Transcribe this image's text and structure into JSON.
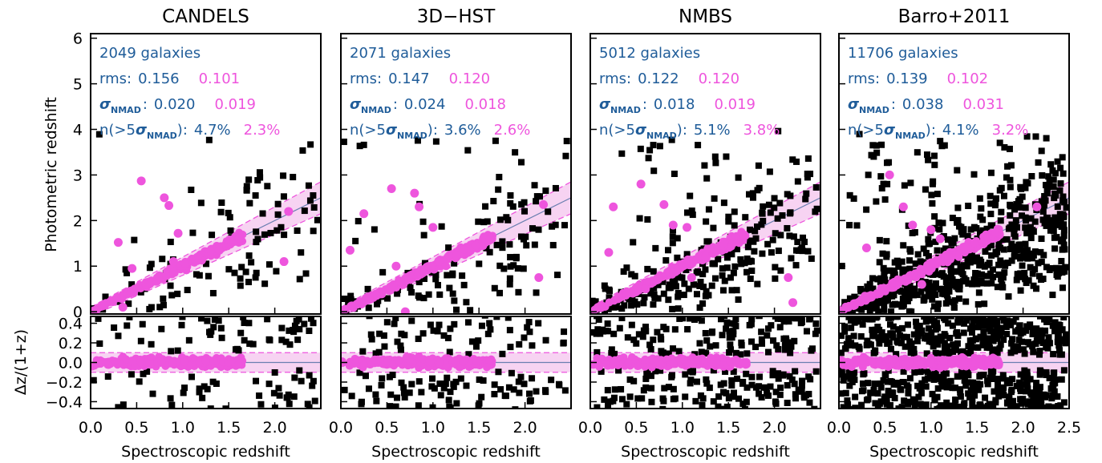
{
  "colors": {
    "blue": "#1f5c99",
    "magenta": "#ee55dd",
    "black": "#000000",
    "band": "#f7d3f2",
    "line": "#6a7fb0"
  },
  "chart_data": {
    "type": "scatter",
    "panels": [
      {
        "title": "CANDELS",
        "stats": {
          "galaxies": "2049 galaxies",
          "rms_label": "rms:",
          "rms_blue": "0.156",
          "rms_pink": "0.101",
          "nmad_sub": "NMAD",
          "nmad_blue": "0.020",
          "nmad_pink": "0.019",
          "outlier_pre": "n(>5",
          "outlier_sub": "NMAD",
          "outlier_post": "):",
          "out_blue": "4.7%",
          "out_pink": "2.3%"
        },
        "max_x": 1.65,
        "outliers": 100,
        "pink_outliers": [
          [
            0.3,
            1.52
          ],
          [
            0.35,
            0.1
          ],
          [
            0.45,
            0.95
          ],
          [
            0.55,
            2.87
          ],
          [
            0.8,
            2.5
          ],
          [
            0.85,
            2.33
          ],
          [
            0.9,
            1.1
          ],
          [
            0.95,
            1.72
          ],
          [
            2.1,
            1.1
          ],
          [
            2.15,
            2.2
          ]
        ]
      },
      {
        "title": "3D−HST",
        "stats": {
          "galaxies": "2071 galaxies",
          "rms_label": "rms:",
          "rms_blue": "0.147",
          "rms_pink": "0.120",
          "nmad_sub": "NMAD",
          "nmad_blue": "0.024",
          "nmad_pink": "0.018",
          "outlier_pre": "n(>5",
          "outlier_sub": "NMAD",
          "outlier_post": "):",
          "out_blue": "3.6%",
          "out_pink": "2.6%"
        },
        "max_x": 1.65,
        "outliers": 130,
        "pink_outliers": [
          [
            0.1,
            1.35
          ],
          [
            0.25,
            2.15
          ],
          [
            0.55,
            2.7
          ],
          [
            0.7,
            0.0
          ],
          [
            0.8,
            2.6
          ],
          [
            0.85,
            2.3
          ],
          [
            1.0,
            1.85
          ],
          [
            2.15,
            0.75
          ],
          [
            2.2,
            2.35
          ],
          [
            0.6,
            1.0
          ]
        ]
      },
      {
        "title": "NMBS",
        "stats": {
          "galaxies": "5012 galaxies",
          "rms_label": "rms:",
          "rms_blue": "0.122",
          "rms_pink": "0.120",
          "nmad_sub": "NMAD",
          "nmad_blue": "0.018",
          "nmad_pink": "0.019",
          "outlier_pre": "n(>5",
          "outlier_sub": "NMAD",
          "outlier_post": "):",
          "out_blue": "5.1%",
          "out_pink": "3.8%"
        },
        "max_x": 1.7,
        "outliers": 260,
        "pink_outliers": [
          [
            0.2,
            1.3
          ],
          [
            0.25,
            2.3
          ],
          [
            0.55,
            2.8
          ],
          [
            0.8,
            2.35
          ],
          [
            0.9,
            1.9
          ],
          [
            1.05,
            1.85
          ],
          [
            1.1,
            0.75
          ],
          [
            2.15,
            0.75
          ],
          [
            2.2,
            0.2
          ],
          [
            0.6,
            0.5
          ]
        ]
      },
      {
        "title": "Barro+2011",
        "stats": {
          "galaxies": "11706 galaxies",
          "rms_label": "rms:",
          "rms_blue": "0.139",
          "rms_pink": "0.102",
          "nmad_sub": "NMAD",
          "nmad_blue": "0.038",
          "nmad_pink": "0.031",
          "outlier_pre": "n(>5",
          "outlier_sub": "NMAD",
          "outlier_post": "):",
          "out_blue": "4.1%",
          "out_pink": "3.2%"
        },
        "max_x": 1.75,
        "outliers": 620,
        "pink_outliers": [
          [
            0.55,
            3.0
          ],
          [
            0.7,
            2.3
          ],
          [
            0.8,
            1.9
          ],
          [
            1.0,
            1.8
          ],
          [
            1.1,
            1.6
          ],
          [
            2.15,
            2.3
          ],
          [
            0.3,
            1.4
          ],
          [
            0.9,
            0.6
          ]
        ]
      }
    ],
    "xlabel": "Spectroscopic redshift",
    "ylabel_top": "Photometric redshift",
    "ylabel_bottom": "Δz/(1+z)",
    "xlim": [
      0,
      2.5
    ],
    "ylim_top": [
      -0.05,
      6.1
    ],
    "ylim_bottom": [
      -0.47,
      0.47
    ],
    "x_ticks": [
      "0.0",
      "0.5",
      "1.0",
      "1.5",
      "2.0",
      "2.5"
    ],
    "y_ticks_top": [
      "0",
      "1",
      "2",
      "3",
      "4",
      "5",
      "6"
    ],
    "y_ticks_bottom": [
      "−0.4",
      "−0.2",
      "0.0",
      "0.2",
      "0.4"
    ],
    "y_ticks_bottom_values": [
      -0.4,
      -0.2,
      0.0,
      0.2,
      0.4
    ],
    "band_half_width": 0.1,
    "grid": false
  }
}
